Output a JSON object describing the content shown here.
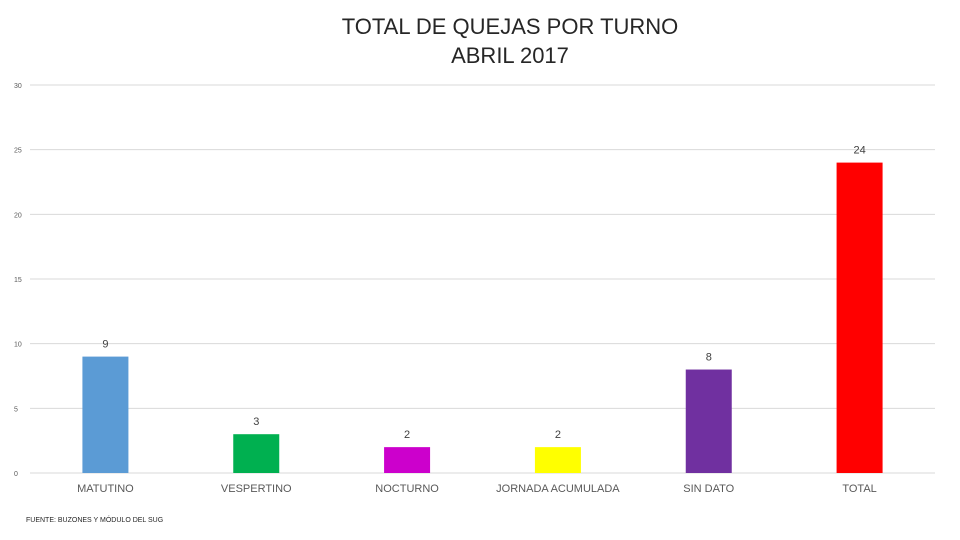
{
  "chart_data": {
    "type": "bar",
    "title": "TOTAL DE QUEJAS POR TURNO",
    "subtitle": "ABRIL 2017",
    "categories": [
      "MATUTINO",
      "VESPERTINO",
      "NOCTURNO",
      "JORNADA ACUMULADA",
      "SIN DATO",
      "TOTAL"
    ],
    "values": [
      9,
      3,
      2,
      2,
      8,
      24
    ],
    "bar_colors": [
      "#5b9bd5",
      "#00b050",
      "#cc00cc",
      "#ffff00",
      "#7030a0",
      "#ff0000"
    ],
    "ylim": [
      0,
      30
    ],
    "yticks": [
      0,
      5,
      10,
      15,
      20,
      25,
      30
    ],
    "grid": true,
    "data_labels": true,
    "legend": "none"
  },
  "footer": {
    "source": "FUENTE: BUZONES Y MÓDULO DEL SUG"
  }
}
